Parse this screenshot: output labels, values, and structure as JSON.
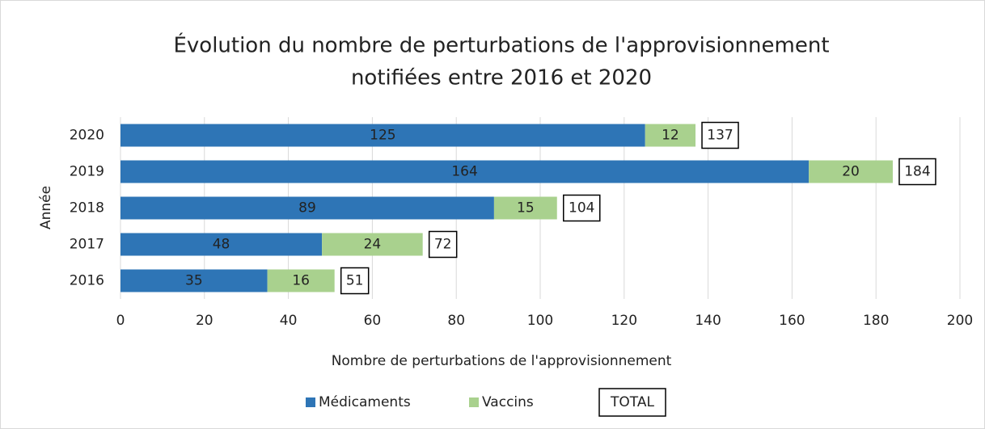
{
  "chart_data": {
    "type": "stacked_barh",
    "title": [
      "Évolution du nombre de perturbations de l'approvisionnement",
      "notifiées entre 2016 et 2020"
    ],
    "xlabel": "Nombre de perturbations de l'approvisionnement",
    "ylabel": "Année",
    "categories": [
      "2020",
      "2019",
      "2018",
      "2017",
      "2016"
    ],
    "series": [
      {
        "name": "Médicaments",
        "color": "#2e75b6",
        "values": [
          125,
          164,
          89,
          48,
          35
        ]
      },
      {
        "name": "Vaccins",
        "color": "#a9d18e",
        "values": [
          12,
          20,
          15,
          24,
          16
        ]
      },
      {
        "name": "TOTAL",
        "color": "#000000",
        "values": [
          137,
          184,
          104,
          72,
          51
        ]
      }
    ],
    "xlim": [
      0,
      200
    ],
    "xticks": [
      0,
      20,
      40,
      60,
      80,
      100,
      120,
      140,
      160,
      180,
      200
    ],
    "grid": true,
    "legend": "bottom"
  }
}
